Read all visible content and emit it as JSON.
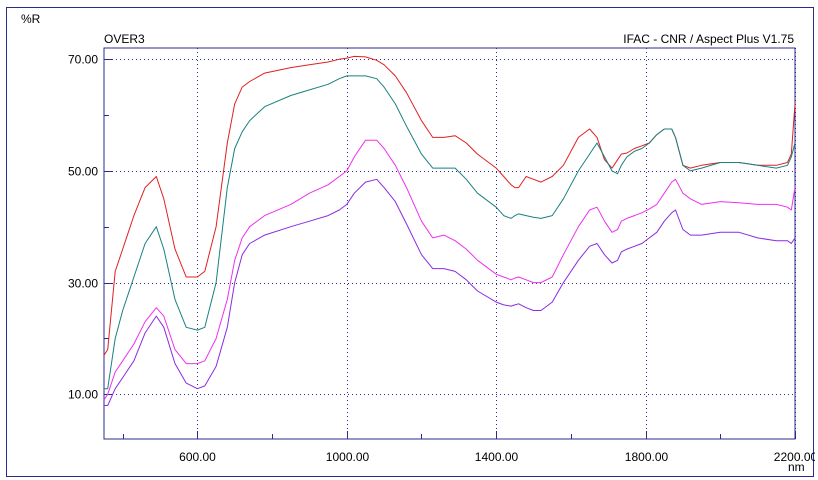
{
  "chart_data": {
    "type": "line",
    "title": "OVER3",
    "header_right": "IFAC - CNR / Aspect Plus V1.75",
    "ylabel": "%R",
    "xlabel": "nm",
    "xlim": [
      350,
      2200
    ],
    "ylim": [
      2,
      72
    ],
    "x_ticks": [
      "600.00",
      "1000.00",
      "1400.00",
      "1800.00",
      "2200.00"
    ],
    "x_tick_values": [
      600,
      1000,
      1400,
      1800,
      2200
    ],
    "y_ticks": [
      "10.00",
      "30.00",
      "50.00",
      "70.00"
    ],
    "y_tick_values": [
      10,
      30,
      50,
      70
    ],
    "grid": true,
    "legend": "none",
    "series": [
      {
        "color": "#e02020",
        "x": [
          350,
          360,
          380,
          400,
          430,
          460,
          490,
          510,
          540,
          570,
          600,
          620,
          650,
          680,
          700,
          720,
          740,
          780,
          850,
          900,
          950,
          980,
          1000,
          1020,
          1050,
          1080,
          1100,
          1130,
          1160,
          1200,
          1230,
          1260,
          1290,
          1320,
          1350,
          1400,
          1420,
          1440,
          1450,
          1460,
          1480,
          1500,
          1520,
          1550,
          1580,
          1620,
          1650,
          1670,
          1690,
          1710,
          1725,
          1735,
          1750,
          1770,
          1790,
          1810,
          1830,
          1850,
          1870,
          1880,
          1900,
          1920,
          1950,
          2000,
          2050,
          2100,
          2150,
          2180,
          2190,
          2200
        ],
        "y": [
          17,
          18,
          32,
          36,
          42,
          47,
          49,
          45,
          36,
          31,
          31,
          32,
          40,
          55,
          62,
          65,
          66,
          67.5,
          68.5,
          69,
          69.5,
          70,
          70.2,
          70.5,
          70.4,
          69.8,
          69,
          67,
          64,
          59,
          56,
          56,
          56.3,
          55,
          53,
          50.5,
          49,
          47.5,
          47,
          47,
          49,
          48.5,
          48,
          49,
          51,
          56,
          57.5,
          56,
          52,
          50.5,
          52,
          53,
          53.2,
          54,
          54.5,
          55,
          56.5,
          57.5,
          57.5,
          56,
          51,
          50.5,
          51,
          51.5,
          51.5,
          51,
          51,
          51.5,
          53,
          62
        ]
      },
      {
        "color": "#1a8080",
        "x": [
          350,
          360,
          380,
          400,
          430,
          460,
          490,
          510,
          540,
          570,
          600,
          620,
          650,
          680,
          700,
          720,
          740,
          780,
          850,
          900,
          950,
          980,
          1000,
          1020,
          1050,
          1080,
          1100,
          1130,
          1160,
          1200,
          1230,
          1260,
          1290,
          1320,
          1350,
          1400,
          1420,
          1440,
          1450,
          1460,
          1480,
          1500,
          1520,
          1550,
          1580,
          1620,
          1650,
          1670,
          1690,
          1710,
          1725,
          1735,
          1750,
          1770,
          1790,
          1810,
          1830,
          1850,
          1870,
          1880,
          1900,
          1920,
          1950,
          2000,
          2050,
          2100,
          2150,
          2180,
          2190,
          2200
        ],
        "y": [
          11,
          11,
          20,
          25,
          31,
          37,
          40,
          36,
          27,
          22,
          21.5,
          22,
          30,
          47,
          54,
          57,
          59,
          61.5,
          63.5,
          64.5,
          65.5,
          66.5,
          67,
          67,
          67,
          66.5,
          65,
          62,
          58,
          53,
          50.5,
          50.5,
          50.5,
          48.5,
          46,
          43.5,
          42,
          41.5,
          42,
          42.3,
          42,
          41.7,
          41.5,
          42,
          45,
          50,
          53,
          55,
          52.5,
          50,
          49.5,
          51,
          52.5,
          53.5,
          54,
          55,
          56.5,
          57.5,
          57.5,
          56,
          51,
          50,
          50.5,
          51.5,
          51.5,
          51,
          50.5,
          51,
          52.5,
          55
        ]
      },
      {
        "color": "#ee30ee",
        "x": [
          350,
          360,
          380,
          400,
          430,
          460,
          490,
          510,
          540,
          570,
          600,
          620,
          650,
          680,
          700,
          720,
          740,
          780,
          850,
          900,
          950,
          980,
          1000,
          1020,
          1050,
          1080,
          1100,
          1130,
          1160,
          1200,
          1230,
          1260,
          1290,
          1320,
          1350,
          1400,
          1420,
          1440,
          1450,
          1460,
          1480,
          1500,
          1520,
          1550,
          1580,
          1620,
          1650,
          1670,
          1690,
          1710,
          1725,
          1735,
          1750,
          1770,
          1790,
          1810,
          1830,
          1850,
          1870,
          1880,
          1900,
          1920,
          1950,
          2000,
          2050,
          2100,
          2150,
          2180,
          2190,
          2200
        ],
        "y": [
          9,
          10,
          14,
          16,
          19,
          23,
          25.5,
          24,
          18,
          15.5,
          15.5,
          16,
          20,
          27,
          34,
          38,
          40,
          42,
          44,
          46,
          47.5,
          49,
          50,
          52.5,
          55.5,
          55.5,
          54,
          51,
          47,
          41,
          38,
          38.5,
          37.5,
          36,
          34,
          31.5,
          31,
          30.5,
          30.8,
          31,
          30.5,
          30,
          30,
          31,
          35,
          40,
          43,
          43.5,
          41,
          39,
          39.5,
          41,
          41.5,
          42,
          42.5,
          43.2,
          44,
          46,
          48,
          48.5,
          46,
          45,
          44,
          44.5,
          44.3,
          44,
          44,
          43.5,
          43,
          47
        ]
      },
      {
        "color": "#8a2be2",
        "x": [
          350,
          360,
          380,
          400,
          430,
          460,
          490,
          510,
          540,
          570,
          600,
          620,
          650,
          680,
          700,
          720,
          740,
          780,
          850,
          900,
          950,
          980,
          1000,
          1020,
          1050,
          1080,
          1100,
          1130,
          1160,
          1200,
          1230,
          1260,
          1290,
          1320,
          1350,
          1400,
          1420,
          1440,
          1450,
          1460,
          1480,
          1500,
          1520,
          1550,
          1580,
          1620,
          1650,
          1670,
          1690,
          1710,
          1725,
          1735,
          1750,
          1770,
          1790,
          1810,
          1830,
          1850,
          1870,
          1880,
          1900,
          1920,
          1950,
          2000,
          2050,
          2100,
          2150,
          2180,
          2190,
          2200
        ],
        "y": [
          8,
          8,
          11,
          13,
          16,
          21,
          24,
          22,
          15.5,
          12,
          11,
          11.5,
          15,
          22,
          30,
          35,
          37,
          38.5,
          40,
          41,
          42,
          43,
          44,
          46,
          48,
          48.5,
          47,
          44.5,
          40.5,
          35,
          32.5,
          32.5,
          32,
          30.5,
          28.5,
          26.5,
          26,
          25.8,
          26,
          26.2,
          25.5,
          25,
          25,
          26.5,
          30,
          34,
          36.5,
          37,
          35,
          33.5,
          34,
          35.5,
          36,
          36.5,
          37,
          38,
          39,
          41,
          42.5,
          43,
          39.5,
          38.5,
          38.5,
          39,
          39,
          38,
          37.5,
          37.5,
          37,
          38
        ]
      }
    ]
  }
}
